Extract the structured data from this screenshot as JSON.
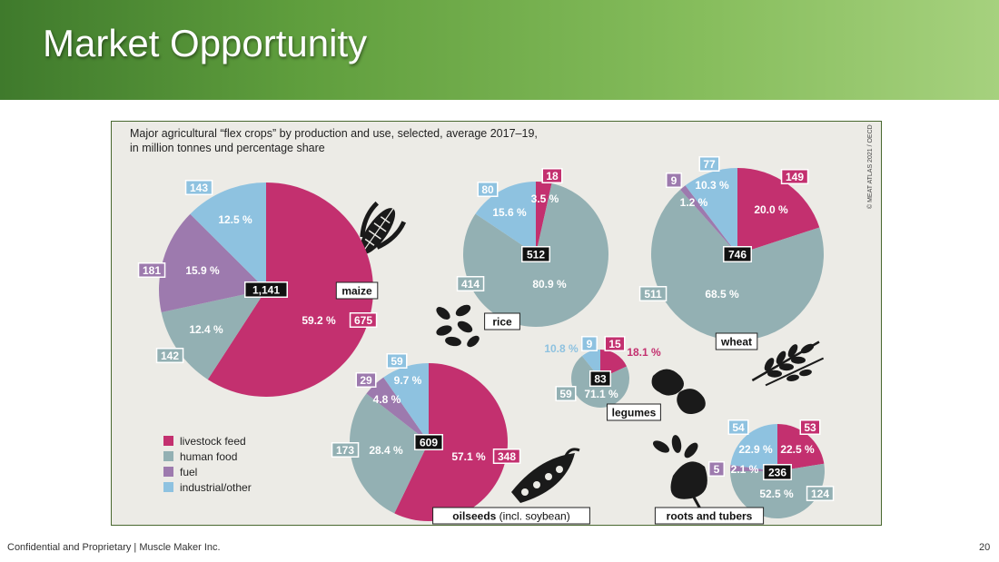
{
  "slide": {
    "title": "Market Opportunity",
    "footer": "Confidential and Proprietary | Muscle Maker Inc.",
    "page_number": "20"
  },
  "colors": {
    "livestock_feed": "#c3306f",
    "human_food": "#93b0b3",
    "fuel": "#9d7aae",
    "industrial_other": "#8ec2e0",
    "background": "#ecebe6",
    "banner_dark": "#3f7a2c",
    "banner_light": "#a6d17e"
  },
  "chart_data": {
    "type": "pie",
    "title": "Major agricultural “flex crops” by production and use, selected, average 2017–19,",
    "subtitle": "in million tonnes und percentage share",
    "source": "© MEAT ATLAS 2021 / OECD",
    "legend_position": "bottom-left",
    "legend": [
      {
        "key": "livestock_feed",
        "label": "livestock feed",
        "color": "#c3306f"
      },
      {
        "key": "human_food",
        "label": "human food",
        "color": "#93b0b3"
      },
      {
        "key": "fuel",
        "label": "fuel",
        "color": "#9d7aae"
      },
      {
        "key": "industrial_other",
        "label": "industrial/other",
        "color": "#8ec2e0"
      }
    ],
    "crops": [
      {
        "name": "maize",
        "suffix": "",
        "total": "1,141",
        "icon": "corn-icon",
        "slices": [
          {
            "category": "livestock_feed",
            "value": "675",
            "percent": "59.2 %"
          },
          {
            "category": "human_food",
            "value": "142",
            "percent": "12.4 %"
          },
          {
            "category": "fuel",
            "value": "181",
            "percent": "15.9 %"
          },
          {
            "category": "industrial_other",
            "value": "143",
            "percent": "12.5 %"
          }
        ]
      },
      {
        "name": "rice",
        "suffix": "",
        "total": "512",
        "icon": "rice-grains-icon",
        "slices": [
          {
            "category": "livestock_feed",
            "value": "18",
            "percent": "3.5 %"
          },
          {
            "category": "human_food",
            "value": "414",
            "percent": "80.9 %"
          },
          {
            "category": "industrial_other",
            "value": "80",
            "percent": "15.6 %"
          }
        ]
      },
      {
        "name": "wheat",
        "suffix": "",
        "total": "746",
        "icon": "wheat-icon",
        "slices": [
          {
            "category": "livestock_feed",
            "value": "149",
            "percent": "20.0 %"
          },
          {
            "category": "human_food",
            "value": "511",
            "percent": "68.5 %"
          },
          {
            "category": "fuel",
            "value": "9",
            "percent": "1.2 %"
          },
          {
            "category": "industrial_other",
            "value": "77",
            "percent": "10.3 %"
          }
        ]
      },
      {
        "name": "legumes",
        "suffix": "",
        "total": "83",
        "icon": "beans-icon",
        "slices": [
          {
            "category": "livestock_feed",
            "value": "15",
            "percent": "18.1 %"
          },
          {
            "category": "human_food",
            "value": "59",
            "percent": "71.1 %"
          },
          {
            "category": "industrial_other",
            "value": "9",
            "percent": "10.8 %"
          }
        ]
      },
      {
        "name": "oilseeds",
        "suffix": " (incl. soybean)",
        "total": "609",
        "icon": "pea-pod-icon",
        "slices": [
          {
            "category": "livestock_feed",
            "value": "348",
            "percent": "57.1 %"
          },
          {
            "category": "human_food",
            "value": "173",
            "percent": "28.4 %"
          },
          {
            "category": "fuel",
            "value": "29",
            "percent": "4.8 %"
          },
          {
            "category": "industrial_other",
            "value": "59",
            "percent": "9.7 %"
          }
        ]
      },
      {
        "name": "roots and tubers",
        "suffix": "",
        "total": "236",
        "icon": "beet-icon",
        "slices": [
          {
            "category": "livestock_feed",
            "value": "53",
            "percent": "22.5 %"
          },
          {
            "category": "human_food",
            "value": "124",
            "percent": "52.5 %"
          },
          {
            "category": "fuel",
            "value": "5",
            "percent": "2.1 %"
          },
          {
            "category": "industrial_other",
            "value": "54",
            "percent": "22.9 %"
          }
        ]
      }
    ]
  }
}
